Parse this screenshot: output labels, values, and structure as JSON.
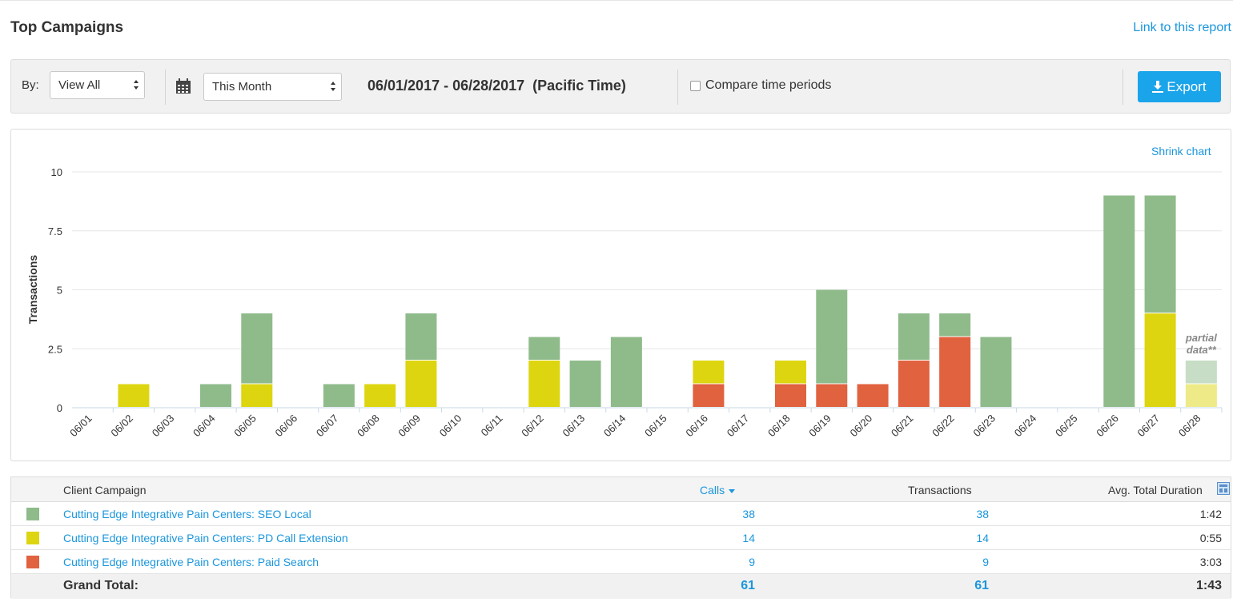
{
  "header": {
    "title": "Top Campaigns",
    "link_report": "Link to this report"
  },
  "toolbar": {
    "by_label": "By:",
    "view_select": "View All",
    "period_select": "This Month",
    "date_range": "06/01/2017 - 06/28/2017  (Pacific Time)",
    "compare_label": "Compare time periods",
    "compare_checked": false,
    "export_label": "Export"
  },
  "chart": {
    "shrink_label": "Shrink chart",
    "partial_line1": "partial",
    "partial_line2": "data**"
  },
  "chart_data": {
    "type": "bar",
    "stacked": true,
    "ylabel": "Transactions",
    "ylim": [
      0,
      10
    ],
    "yticks": [
      "0",
      "2.5",
      "5",
      "7.5",
      "10"
    ],
    "categories": [
      "06/01",
      "06/02",
      "06/03",
      "06/04",
      "06/05",
      "06/06",
      "06/07",
      "06/08",
      "06/09",
      "06/10",
      "06/11",
      "06/12",
      "06/13",
      "06/14",
      "06/15",
      "06/16",
      "06/17",
      "06/18",
      "06/19",
      "06/20",
      "06/21",
      "06/22",
      "06/23",
      "06/24",
      "06/25",
      "06/26",
      "06/27",
      "06/28"
    ],
    "series": [
      {
        "name": "Cutting Edge Integrative Pain Centers: Paid Search",
        "color": "#e0623f",
        "values": [
          0,
          0,
          0,
          0,
          0,
          0,
          0,
          0,
          0,
          0,
          0,
          0,
          0,
          0,
          0,
          1,
          0,
          1,
          1,
          1,
          2,
          3,
          0,
          0,
          0,
          0,
          0,
          0
        ]
      },
      {
        "name": "Cutting Edge Integrative Pain Centers: PD Call Extension",
        "color": "#ddd510",
        "values": [
          0,
          1,
          0,
          0,
          1,
          0,
          0,
          1,
          2,
          0,
          0,
          2,
          0,
          0,
          0,
          1,
          0,
          1,
          0,
          0,
          0,
          0,
          0,
          0,
          0,
          0,
          4,
          1
        ]
      },
      {
        "name": "Cutting Edge Integrative Pain Centers: SEO Local",
        "color": "#8fbb8b",
        "values": [
          0,
          0,
          0,
          1,
          3,
          0,
          1,
          0,
          2,
          0,
          0,
          1,
          2,
          3,
          0,
          0,
          0,
          0,
          4,
          0,
          2,
          1,
          3,
          0,
          0,
          9,
          5,
          1
        ]
      }
    ],
    "partial_index": 27,
    "grid": true,
    "legend": "none"
  },
  "table": {
    "headers": {
      "campaign": "Client Campaign",
      "calls": "Calls",
      "transactions": "Transactions",
      "duration": "Avg. Total Duration"
    },
    "rows": [
      {
        "name": "Cutting Edge Integrative Pain Centers: SEO Local",
        "color": "#8fbb8b",
        "calls": "38",
        "transactions": "38",
        "duration": "1:42"
      },
      {
        "name": "Cutting Edge Integrative Pain Centers: PD Call Extension",
        "color": "#ddd510",
        "calls": "14",
        "transactions": "14",
        "duration": "0:55"
      },
      {
        "name": "Cutting Edge Integrative Pain Centers: Paid Search",
        "color": "#e0623f",
        "calls": "9",
        "transactions": "9",
        "duration": "3:03"
      }
    ],
    "total": {
      "label": "Grand Total:",
      "calls": "61",
      "transactions": "61",
      "duration": "1:43"
    }
  },
  "icons": {
    "calendar": "calendar-icon",
    "export": "download-icon",
    "sort": "sort-down-icon",
    "columns": "column-chooser-icon"
  }
}
